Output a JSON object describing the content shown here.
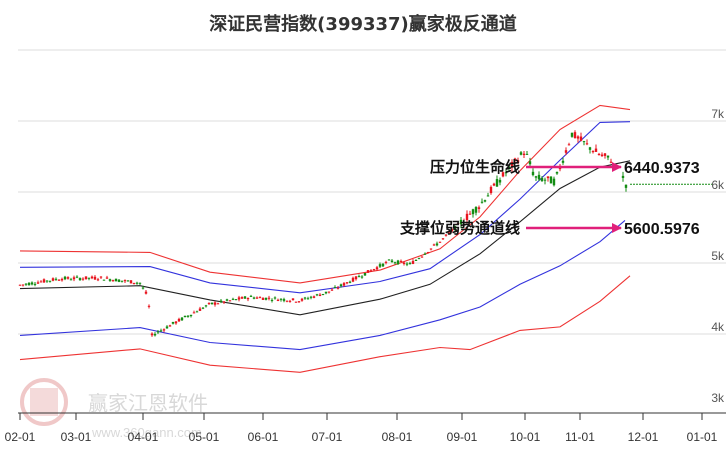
{
  "title": "深证民营指数(399337)赢家极反通道",
  "watermark": {
    "name": "赢家江恩软件",
    "url": "www.360gann.com",
    "seal": [
      "江",
      "赢",
      "恩",
      "家"
    ]
  },
  "colors": {
    "up": "#e8141e",
    "down": "#138c13",
    "mid": "#222222",
    "inner_band": "#3333dd",
    "outer_band": "#ee3333",
    "arrow": "#e0207a",
    "grid": "#dddddd",
    "last_dash": "#138c13"
  },
  "chart_data": {
    "type": "candlestick",
    "title": "深证民营指数(399337)赢家极反通道",
    "xlabel": "",
    "ylabel": "",
    "x_ticks": [
      "02-01",
      "03-01",
      "04-01",
      "05-01",
      "06-01",
      "07-01",
      "08-01",
      "09-01",
      "10-01",
      "11-01",
      "12-01",
      "01-01"
    ],
    "y_ticks": [
      "3k",
      "4k",
      "5k",
      "6k",
      "7k"
    ],
    "ylim": [
      3000,
      7400
    ],
    "grid": true,
    "annotations": [
      {
        "label": "压力位生命线",
        "value": "6440.9373"
      },
      {
        "label": "支撑位弱势通道线",
        "value": "5600.5976"
      }
    ],
    "series": [
      {
        "name": "outer_upper",
        "color": "#ee3333",
        "points": [
          [
            20,
            5170
          ],
          [
            150,
            5150
          ],
          [
            210,
            4870
          ],
          [
            300,
            4720
          ],
          [
            380,
            4900
          ],
          [
            440,
            5200
          ],
          [
            480,
            5650
          ],
          [
            520,
            6300
          ],
          [
            560,
            6880
          ],
          [
            600,
            7220
          ],
          [
            630,
            7160
          ]
        ]
      },
      {
        "name": "inner_upper",
        "color": "#3333dd",
        "points": [
          [
            20,
            4940
          ],
          [
            150,
            4950
          ],
          [
            210,
            4720
          ],
          [
            300,
            4580
          ],
          [
            380,
            4740
          ],
          [
            430,
            4920
          ],
          [
            480,
            5400
          ],
          [
            520,
            5900
          ],
          [
            560,
            6450
          ],
          [
            600,
            6980
          ],
          [
            630,
            6990
          ]
        ]
      },
      {
        "name": "middle",
        "color": "#222222",
        "points": [
          [
            20,
            4640
          ],
          [
            140,
            4680
          ],
          [
            210,
            4480
          ],
          [
            300,
            4270
          ],
          [
            380,
            4490
          ],
          [
            430,
            4700
          ],
          [
            480,
            5130
          ],
          [
            520,
            5580
          ],
          [
            560,
            6050
          ],
          [
            600,
            6350
          ],
          [
            630,
            6440
          ]
        ]
      },
      {
        "name": "inner_lower",
        "color": "#3333dd",
        "points": [
          [
            20,
            3980
          ],
          [
            140,
            4090
          ],
          [
            210,
            3880
          ],
          [
            300,
            3780
          ],
          [
            380,
            3980
          ],
          [
            440,
            4200
          ],
          [
            480,
            4380
          ],
          [
            520,
            4700
          ],
          [
            560,
            4960
          ],
          [
            600,
            5300
          ],
          [
            625,
            5600
          ]
        ]
      },
      {
        "name": "outer_lower",
        "color": "#ee3333",
        "points": [
          [
            20,
            3640
          ],
          [
            140,
            3790
          ],
          [
            210,
            3560
          ],
          [
            300,
            3460
          ],
          [
            380,
            3680
          ],
          [
            440,
            3810
          ],
          [
            470,
            3780
          ],
          [
            520,
            4050
          ],
          [
            560,
            4100
          ],
          [
            600,
            4460
          ],
          [
            630,
            4820
          ]
        ]
      }
    ],
    "last_close": 6110
  }
}
